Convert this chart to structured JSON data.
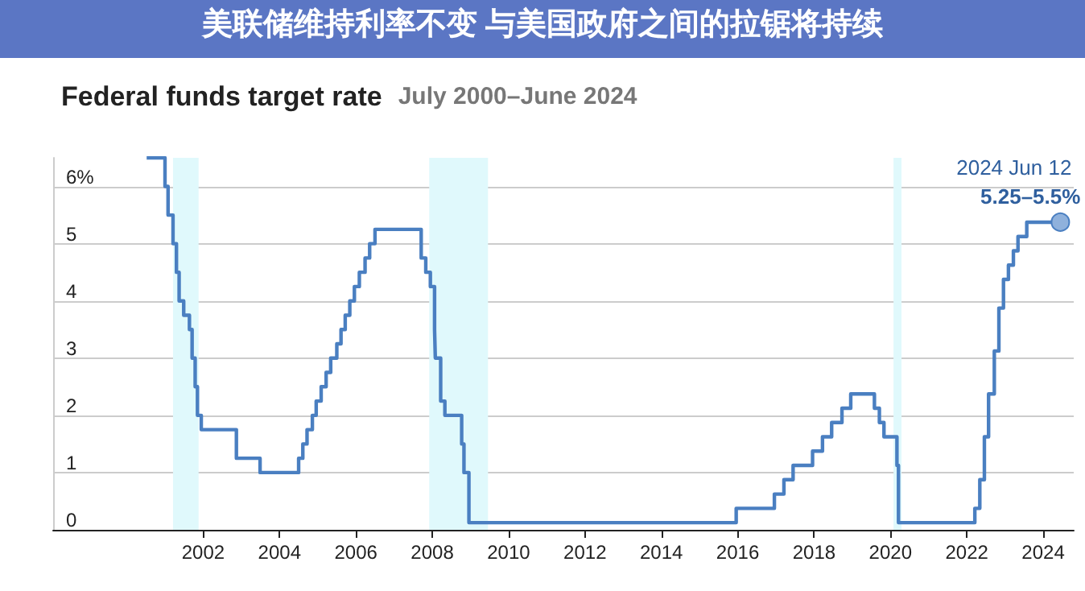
{
  "chart_data": {
    "type": "step",
    "title": "Federal funds target rate",
    "subtitle": "July 2000–June 2024",
    "x": [
      2000.52,
      2001.0,
      2001.08,
      2001.21,
      2001.3,
      2001.37,
      2001.49,
      2001.64,
      2001.71,
      2001.79,
      2001.85,
      2001.95,
      2002.87,
      2003.49,
      2004.5,
      2004.61,
      2004.72,
      2004.86,
      2004.96,
      2005.09,
      2005.22,
      2005.34,
      2005.5,
      2005.61,
      2005.72,
      2005.84,
      2005.96,
      2006.09,
      2006.24,
      2006.36,
      2006.5,
      2007.71,
      2007.83,
      2007.95,
      2008.06,
      2008.08,
      2008.22,
      2008.33,
      2008.77,
      2008.83,
      2008.96,
      2015.96,
      2016.96,
      2017.21,
      2017.45,
      2017.96,
      2018.22,
      2018.46,
      2018.73,
      2018.96,
      2019.58,
      2019.71,
      2019.83,
      2020.17,
      2020.21,
      2022.21,
      2022.34,
      2022.46,
      2022.57,
      2022.72,
      2022.84,
      2022.96,
      2023.09,
      2023.22,
      2023.34,
      2023.57,
      2024.45
    ],
    "series": [
      {
        "color": "#4a7fc1",
        "values": [
          6.5,
          6.0,
          5.5,
          5.0,
          4.5,
          4.0,
          3.75,
          3.5,
          3.0,
          2.5,
          2.0,
          1.75,
          1.25,
          1.0,
          1.25,
          1.5,
          1.75,
          2.0,
          2.25,
          2.5,
          2.75,
          3.0,
          3.25,
          3.5,
          3.75,
          4.0,
          4.25,
          4.5,
          4.75,
          5.0,
          5.25,
          4.75,
          4.5,
          4.25,
          3.5,
          3.0,
          2.25,
          2.0,
          1.5,
          1.0,
          0.125,
          0.375,
          0.625,
          0.875,
          1.125,
          1.375,
          1.625,
          1.875,
          2.125,
          2.375,
          2.125,
          1.875,
          1.625,
          1.125,
          0.125,
          0.375,
          0.875,
          1.625,
          2.375,
          3.125,
          3.875,
          4.375,
          4.625,
          4.875,
          5.125,
          5.375,
          5.375
        ]
      }
    ],
    "xlim": [
      1998.07,
      2024.8
    ],
    "xticks": [
      2002,
      2004,
      2006,
      2008,
      2010,
      2012,
      2014,
      2016,
      2018,
      2020,
      2022,
      2024
    ],
    "ylim": [
      0,
      6.5
    ],
    "yticks": [
      0,
      1,
      2,
      3,
      4,
      5,
      {
        "value": 6,
        "label": "6%"
      }
    ],
    "grid": "y",
    "marker": "none",
    "line_style": "solid",
    "bands": [
      {
        "axis": "x",
        "from": 2001.21,
        "to": 2001.88,
        "color": "#e0f9fc"
      },
      {
        "axis": "x",
        "from": 2007.92,
        "to": 2009.46,
        "color": "#e0f9fc"
      },
      {
        "axis": "x",
        "from": 2020.08,
        "to": 2020.29,
        "color": "#e0f9fc"
      }
    ],
    "annotations": [
      "美联储维持利率不变 与美国政府之间的拉锯将持续",
      {
        "text": "2024 Jun 12",
        "x": 2024.45,
        "y": 5.375
      },
      {
        "text": "5.25–5.5%",
        "x": 2024.45,
        "y": 5.375
      }
    ]
  }
}
